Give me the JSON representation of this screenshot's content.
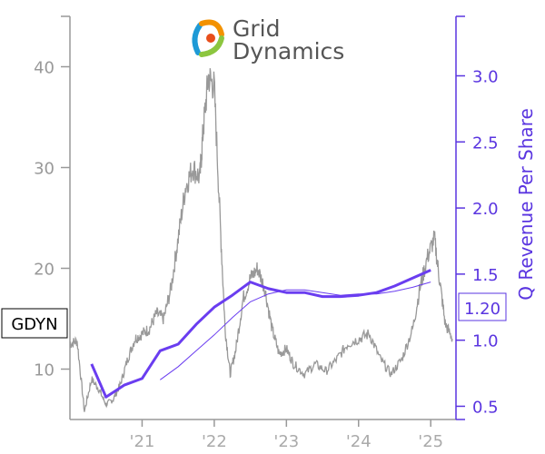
{
  "logo": {
    "line1": "Grid",
    "line2": "Dynamics",
    "colors": [
      "#1e9ad6",
      "#f39200",
      "#8cc63f",
      "#e84e1b"
    ]
  },
  "chart_data": {
    "type": "line",
    "title": "",
    "ticker": "GDYN",
    "last_value_label": "1.20",
    "colors": {
      "price": "#999999",
      "revenue": "#6a3df0",
      "axis_right": "#5a35e0"
    },
    "x_axis": {
      "ticks": [
        {
          "label": "'21",
          "year": 2021
        },
        {
          "label": "'22",
          "year": 2022
        },
        {
          "label": "'23",
          "year": 2023
        },
        {
          "label": "'24",
          "year": 2024
        },
        {
          "label": "'25",
          "year": 2025
        }
      ],
      "range": [
        2020.0,
        2025.35
      ]
    },
    "y_left": {
      "label": "",
      "ticks": [
        10,
        20,
        30,
        40
      ],
      "range": [
        5,
        45
      ]
    },
    "y_right": {
      "label": "Q Revenue Per Share",
      "ticks": [
        "0.5",
        "1.0",
        "1.5",
        "2.0",
        "2.5",
        "3.0"
      ],
      "range": [
        0.4,
        3.45
      ]
    },
    "price_anchors": [
      [
        2020.0,
        12.5
      ],
      [
        2020.1,
        12.8
      ],
      [
        2020.2,
        5.8
      ],
      [
        2020.3,
        9.0
      ],
      [
        2020.4,
        8.0
      ],
      [
        2020.5,
        6.5
      ],
      [
        2020.6,
        7.0
      ],
      [
        2020.7,
        8.5
      ],
      [
        2020.8,
        11.0
      ],
      [
        2020.9,
        13.0
      ],
      [
        2021.0,
        13.5
      ],
      [
        2021.1,
        14.0
      ],
      [
        2021.2,
        15.5
      ],
      [
        2021.3,
        15.0
      ],
      [
        2021.4,
        18.0
      ],
      [
        2021.5,
        23.0
      ],
      [
        2021.6,
        28.0
      ],
      [
        2021.7,
        30.0
      ],
      [
        2021.8,
        29.0
      ],
      [
        2021.85,
        34.0
      ],
      [
        2021.92,
        39.0
      ],
      [
        2022.0,
        38.0
      ],
      [
        2022.08,
        25.0
      ],
      [
        2022.15,
        14.0
      ],
      [
        2022.22,
        9.5
      ],
      [
        2022.3,
        12.0
      ],
      [
        2022.4,
        17.0
      ],
      [
        2022.5,
        19.0
      ],
      [
        2022.6,
        20.0
      ],
      [
        2022.7,
        18.0
      ],
      [
        2022.8,
        14.0
      ],
      [
        2022.9,
        11.5
      ],
      [
        2023.0,
        12.0
      ],
      [
        2023.1,
        10.5
      ],
      [
        2023.25,
        9.5
      ],
      [
        2023.4,
        10.5
      ],
      [
        2023.55,
        9.8
      ],
      [
        2023.7,
        11.0
      ],
      [
        2023.85,
        12.5
      ],
      [
        2024.0,
        13.0
      ],
      [
        2024.15,
        13.5
      ],
      [
        2024.3,
        11.0
      ],
      [
        2024.45,
        9.5
      ],
      [
        2024.6,
        11.0
      ],
      [
        2024.75,
        14.0
      ],
      [
        2024.85,
        18.0
      ],
      [
        2024.95,
        21.0
      ],
      [
        2025.05,
        23.0
      ],
      [
        2025.12,
        19.0
      ],
      [
        2025.2,
        14.5
      ],
      [
        2025.3,
        13.0
      ]
    ],
    "revenue_series": {
      "name": "",
      "x": [
        2020.3,
        2020.5,
        2020.75,
        2021.0,
        2021.25,
        2021.5,
        2021.75,
        2022.0,
        2022.25,
        2022.5,
        2022.75,
        2023.0,
        2023.25,
        2023.5,
        2023.75,
        2024.0,
        2024.25,
        2024.5,
        2024.75,
        2025.0
      ],
      "y": [
        0.82,
        0.57,
        0.66,
        0.71,
        0.92,
        0.97,
        1.12,
        1.25,
        1.34,
        1.44,
        1.39,
        1.36,
        1.36,
        1.33,
        1.33,
        1.34,
        1.36,
        1.41,
        1.47,
        1.53
      ]
    },
    "revenue_ttm_series": {
      "name": "",
      "x": [
        2021.25,
        2021.5,
        2021.75,
        2022.0,
        2022.25,
        2022.5,
        2022.75,
        2023.0,
        2023.25,
        2023.5,
        2023.75,
        2024.0,
        2024.25,
        2024.5,
        2024.75,
        2025.0
      ],
      "y": [
        0.7,
        0.8,
        0.92,
        1.04,
        1.17,
        1.29,
        1.35,
        1.38,
        1.38,
        1.36,
        1.34,
        1.35,
        1.35,
        1.37,
        1.4,
        1.44
      ]
    }
  }
}
